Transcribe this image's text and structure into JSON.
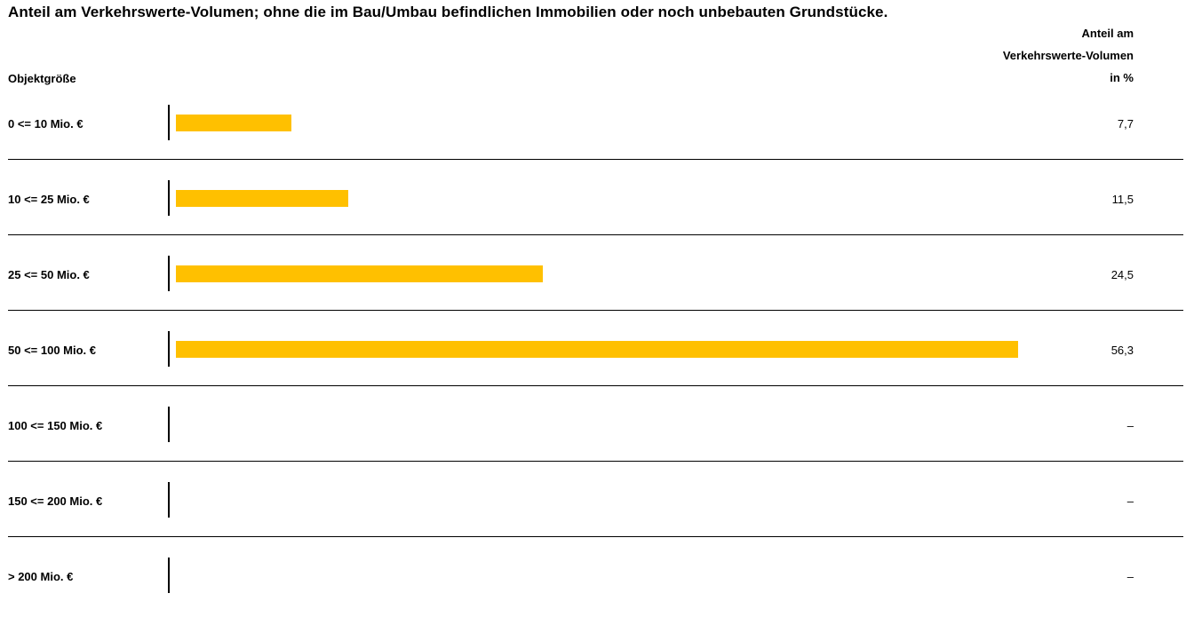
{
  "title": "Anteil am Verkehrswerte-Volumen; ohne die im Bau/Umbau befindlichen Immobilien oder noch unbebauten Grundstücke.",
  "header": {
    "left_column": "Objektgröße",
    "right_column_lines": [
      "Anteil am",
      "Verkehrswerte-Volumen",
      "in %"
    ]
  },
  "colors": {
    "bar": "#FFC000",
    "rules": "#000000"
  },
  "chart_data": {
    "type": "bar",
    "orientation": "horizontal",
    "title": "Anteil am Verkehrswerte-Volumen; ohne die im Bau/Umbau befindlichen Immobilien oder noch unbebauten Grundstücke.",
    "xlabel": "Anteil am Verkehrswerte-Volumen in %",
    "ylabel": "Objektgröße",
    "xlim": [
      0,
      66.5
    ],
    "grid": false,
    "categories": [
      "0 <= 10 Mio. €",
      "10 <= 25 Mio. €",
      "25 <= 50 Mio. €",
      "50 <= 100 Mio. €",
      "100 <= 150 Mio. €",
      "150 <= 200 Mio. €",
      "> 200 Mio. €"
    ],
    "values": [
      7.7,
      11.5,
      24.5,
      56.3,
      null,
      null,
      null
    ],
    "value_labels": [
      "7,7",
      "11,5",
      "24,5",
      "56,3",
      "–",
      "–",
      "–"
    ]
  }
}
